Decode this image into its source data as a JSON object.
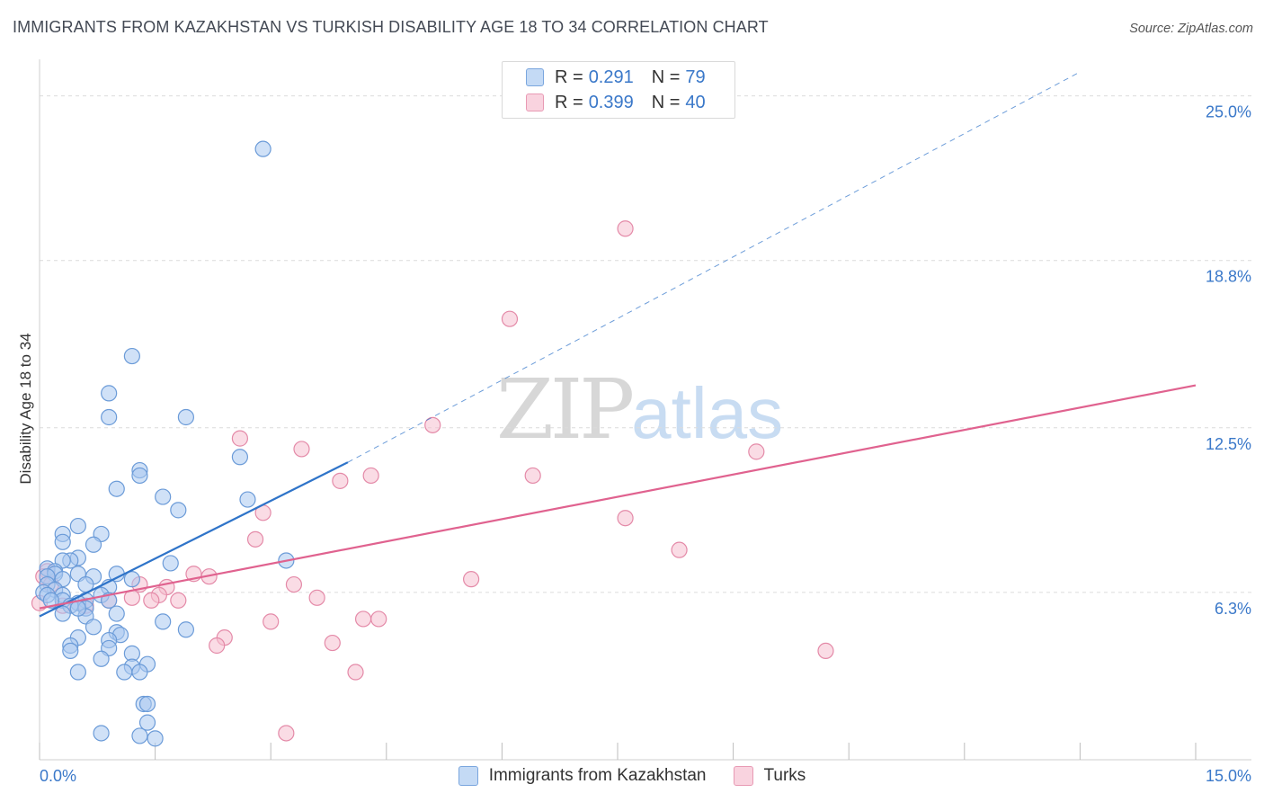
{
  "header": {
    "title": "IMMIGRANTS FROM KAZAKHSTAN VS TURKISH DISABILITY AGE 18 TO 34 CORRELATION CHART",
    "source": "Source: ZipAtlas.com"
  },
  "watermark": {
    "zip": "ZIP",
    "atlas": "atlas"
  },
  "legend": {
    "rows": [
      {
        "r_label": "R =",
        "r_value": "0.291",
        "n_label": "N =",
        "n_value": "79"
      },
      {
        "r_label": "R =",
        "r_value": "0.399",
        "n_label": "N =",
        "n_value": "40"
      }
    ]
  },
  "bottom_legend": {
    "series1": "Immigrants from Kazakhstan",
    "series2": "Turks"
  },
  "colors": {
    "blue_fill": "#a9c8f0",
    "blue_stroke": "#6b9bd8",
    "blue_line": "#2f74c9",
    "pink_fill": "#f6bfd0",
    "pink_stroke": "#e48aa8",
    "pink_line": "#e0628f",
    "tick_label": "#3a78c9",
    "grid": "#dcdcdc"
  },
  "chart_data": {
    "type": "scatter",
    "title": "IMMIGRANTS FROM KAZAKHSTAN VS TURKISH DISABILITY AGE 18 TO 34 CORRELATION CHART",
    "xlabel": "",
    "ylabel": "Disability Age 18 to 34",
    "xlim": [
      0,
      15
    ],
    "ylim": [
      0,
      25.9
    ],
    "x_tick_labels": [
      "0.0%",
      "15.0%"
    ],
    "y_ticks": [
      6.3,
      12.5,
      18.8,
      25.0
    ],
    "y_tick_labels": [
      "6.3%",
      "12.5%",
      "18.8%",
      "25.0%"
    ],
    "grid": true,
    "legend_position": "top-center",
    "series": [
      {
        "name": "Immigrants from Kazakhstan",
        "r": 0.291,
        "n": 79,
        "trend": {
          "x": [
            0,
            4.0
          ],
          "y": [
            5.4,
            11.2
          ],
          "dashed_extension_to": [
            13.5,
            25.9
          ]
        },
        "points": [
          [
            2.9,
            23.0
          ],
          [
            1.2,
            15.2
          ],
          [
            0.9,
            13.8
          ],
          [
            0.9,
            12.9
          ],
          [
            1.9,
            12.9
          ],
          [
            1.3,
            10.9
          ],
          [
            2.6,
            11.4
          ],
          [
            1.3,
            10.7
          ],
          [
            1.0,
            10.2
          ],
          [
            1.6,
            9.9
          ],
          [
            2.7,
            9.8
          ],
          [
            1.8,
            9.4
          ],
          [
            0.5,
            8.8
          ],
          [
            0.3,
            8.5
          ],
          [
            0.8,
            8.5
          ],
          [
            0.3,
            8.2
          ],
          [
            0.7,
            8.1
          ],
          [
            0.5,
            7.6
          ],
          [
            0.4,
            7.5
          ],
          [
            0.3,
            7.5
          ],
          [
            3.2,
            7.5
          ],
          [
            1.7,
            7.4
          ],
          [
            0.1,
            7.2
          ],
          [
            0.2,
            7.1
          ],
          [
            0.2,
            7.0
          ],
          [
            0.5,
            7.0
          ],
          [
            1.0,
            7.0
          ],
          [
            0.7,
            6.9
          ],
          [
            0.3,
            6.8
          ],
          [
            0.1,
            6.9
          ],
          [
            0.1,
            6.6
          ],
          [
            1.2,
            6.8
          ],
          [
            0.6,
            6.6
          ],
          [
            0.9,
            6.5
          ],
          [
            0.2,
            6.4
          ],
          [
            0.05,
            6.3
          ],
          [
            0.1,
            6.2
          ],
          [
            0.3,
            6.2
          ],
          [
            0.8,
            6.2
          ],
          [
            0.9,
            6.0
          ],
          [
            0.6,
            6.0
          ],
          [
            0.3,
            6.0
          ],
          [
            0.15,
            6.0
          ],
          [
            0.5,
            5.9
          ],
          [
            0.4,
            5.8
          ],
          [
            0.6,
            5.7
          ],
          [
            0.3,
            5.5
          ],
          [
            1.0,
            5.5
          ],
          [
            0.6,
            5.4
          ],
          [
            0.5,
            5.7
          ],
          [
            1.6,
            5.2
          ],
          [
            0.7,
            5.0
          ],
          [
            1.0,
            4.8
          ],
          [
            1.05,
            4.7
          ],
          [
            1.9,
            4.9
          ],
          [
            0.5,
            4.6
          ],
          [
            0.9,
            4.5
          ],
          [
            0.4,
            4.3
          ],
          [
            0.9,
            4.2
          ],
          [
            0.4,
            4.1
          ],
          [
            1.2,
            4.0
          ],
          [
            0.8,
            3.8
          ],
          [
            1.4,
            3.6
          ],
          [
            1.2,
            3.5
          ],
          [
            0.5,
            3.3
          ],
          [
            1.1,
            3.3
          ],
          [
            1.3,
            3.3
          ],
          [
            1.35,
            2.1
          ],
          [
            1.4,
            2.1
          ],
          [
            1.4,
            1.4
          ],
          [
            0.8,
            1.0
          ],
          [
            1.3,
            0.9
          ],
          [
            1.5,
            0.8
          ]
        ]
      },
      {
        "name": "Turks",
        "r": 0.399,
        "n": 40,
        "trend": {
          "x": [
            0,
            15
          ],
          "y": [
            5.7,
            14.1
          ]
        },
        "points": [
          [
            7.6,
            20.0
          ],
          [
            6.1,
            16.6
          ],
          [
            5.1,
            12.6
          ],
          [
            2.6,
            12.1
          ],
          [
            3.4,
            11.7
          ],
          [
            9.3,
            11.6
          ],
          [
            4.3,
            10.7
          ],
          [
            6.4,
            10.7
          ],
          [
            3.9,
            10.5
          ],
          [
            7.6,
            9.1
          ],
          [
            2.9,
            9.3
          ],
          [
            2.8,
            8.3
          ],
          [
            8.3,
            7.9
          ],
          [
            2.0,
            7.0
          ],
          [
            2.2,
            6.9
          ],
          [
            5.6,
            6.8
          ],
          [
            3.3,
            6.6
          ],
          [
            1.3,
            6.6
          ],
          [
            1.65,
            6.5
          ],
          [
            1.55,
            6.2
          ],
          [
            1.2,
            6.1
          ],
          [
            0.1,
            7.1
          ],
          [
            0.05,
            6.9
          ],
          [
            0.15,
            6.6
          ],
          [
            1.8,
            6.0
          ],
          [
            1.45,
            6.0
          ],
          [
            0.6,
            5.8
          ],
          [
            0.9,
            6.0
          ],
          [
            0.3,
            5.8
          ],
          [
            3.6,
            6.1
          ],
          [
            4.2,
            5.3
          ],
          [
            4.4,
            5.3
          ],
          [
            3.0,
            5.2
          ],
          [
            2.4,
            4.6
          ],
          [
            2.3,
            4.3
          ],
          [
            3.8,
            4.4
          ],
          [
            10.2,
            4.1
          ],
          [
            4.1,
            3.3
          ],
          [
            3.2,
            1.0
          ],
          [
            0.0,
            5.9
          ]
        ]
      }
    ]
  }
}
